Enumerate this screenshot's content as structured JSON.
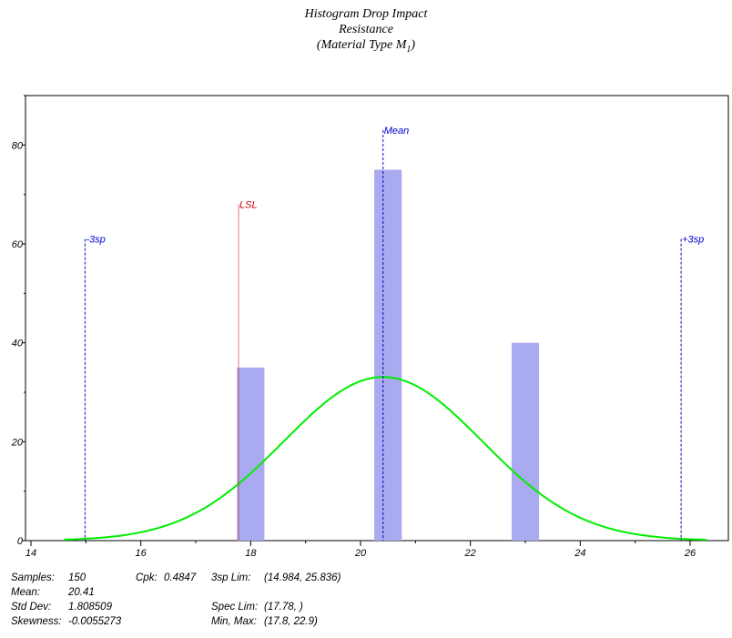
{
  "chart_data": {
    "type": "bar",
    "title": "Histogram Drop Impact",
    "title_line2": "Resistance",
    "title_line3": "(Material Type M",
    "title_sub": "1",
    "title_line3_end": ")",
    "xlim": [
      14,
      27
    ],
    "ylim": [
      0,
      90
    ],
    "x_ticks": [
      14,
      16,
      18,
      20,
      22,
      24,
      26
    ],
    "y_ticks": [
      0,
      20,
      40,
      60,
      80
    ],
    "bars": [
      {
        "x_left": 17.75,
        "x_right": 18.25,
        "value": 35
      },
      {
        "x_left": 20.25,
        "x_right": 20.75,
        "value": 75
      },
      {
        "x_left": 22.75,
        "x_right": 23.25,
        "value": 40
      }
    ],
    "bar_color": "#aaaaf0",
    "normal_curve": {
      "mean": 20.41,
      "std": 1.808509,
      "n": 150,
      "bin_width": 1.0,
      "x_range": [
        14.6,
        26.3
      ],
      "color": "#00ee00"
    },
    "ref_lines": [
      {
        "label": "-3sp",
        "x": 14.984,
        "top": 61,
        "color": "#0000cc",
        "style": "dashed"
      },
      {
        "label": "LSL",
        "x": 17.78,
        "top": 68,
        "color": "#cc0000",
        "style": "dotted"
      },
      {
        "label": "Mean",
        "x": 20.41,
        "top": 83,
        "color": "#0000cc",
        "style": "dashed"
      },
      {
        "label": "+3sp",
        "x": 25.836,
        "top": 61,
        "color": "#0000cc",
        "style": "dashed"
      }
    ],
    "grid": false
  },
  "stats": {
    "samples_label": "Samples:",
    "samples": "150",
    "mean_label": "Mean:",
    "mean": "20.41",
    "std_label": "Std Dev:",
    "std": "1.808509",
    "skew_label": "Skewness:",
    "skew": "-0.0055273",
    "cpk_label": "Cpk:",
    "cpk": "0.4847",
    "lim_label": "3sp Lim:",
    "lim": "(14.984, 25.836)",
    "spec_label": "Spec Lim:",
    "spec": "(17.78, )",
    "minmax_label": "Min, Max:",
    "minmax": "(17.8, 22.9)"
  }
}
